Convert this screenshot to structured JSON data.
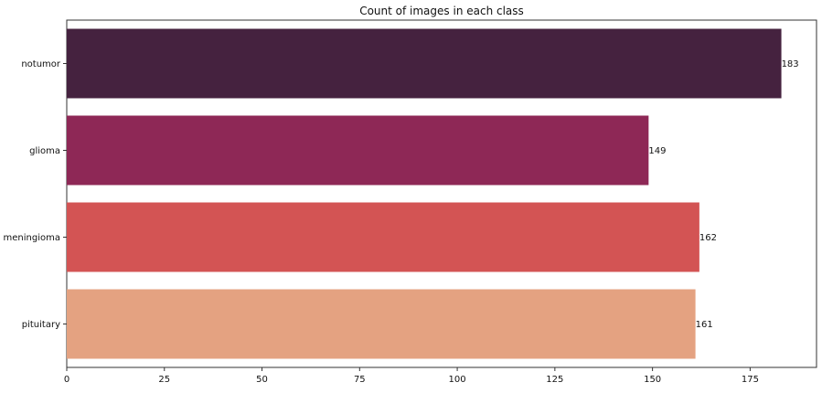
{
  "chart_data": {
    "type": "bar",
    "orientation": "horizontal",
    "title": "Count of images in each class",
    "xlabel": "",
    "ylabel": "",
    "categories": [
      "notumor",
      "glioma",
      "meningioma",
      "pituitary"
    ],
    "values": [
      183,
      149,
      162,
      161
    ],
    "data_labels": [
      "183",
      "149",
      "162",
      "161"
    ],
    "colors": [
      "#45223f",
      "#8e2856",
      "#d35454",
      "#e4a281"
    ],
    "xlim": [
      0,
      192
    ],
    "xticks": [
      0,
      25,
      50,
      75,
      100,
      125,
      150,
      175
    ],
    "xtick_labels": [
      "0",
      "25",
      "50",
      "75",
      "100",
      "125",
      "150",
      "175"
    ],
    "grid": false
  }
}
